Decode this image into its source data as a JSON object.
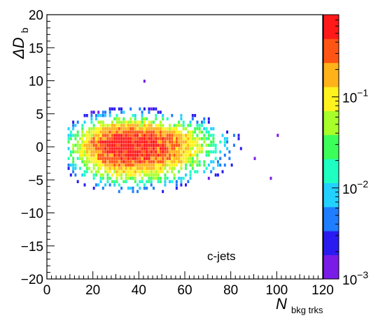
{
  "chart_data": {
    "type": "heatmap",
    "annotation": "c-jets",
    "xlabel": {
      "main": "N",
      "sub": "bkg trks"
    },
    "ylabel": {
      "main": "ΔD",
      "sub": "b"
    },
    "xlim": [
      0,
      120
    ],
    "ylim": [
      -20,
      20
    ],
    "x_ticks": [
      "0",
      "20",
      "40",
      "60",
      "80",
      "100",
      "120"
    ],
    "y_ticks": [
      "−20",
      "−15",
      "−10",
      "−5",
      "0",
      "5",
      "10",
      "15",
      "20"
    ],
    "z_scale": "log",
    "zlim": [
      0.001,
      0.8
    ],
    "z_ticks": [
      {
        "base": "10",
        "exp": "−3"
      },
      {
        "base": "10",
        "exp": "−2"
      },
      {
        "base": "10",
        "exp": "−1"
      }
    ],
    "bin_width": {
      "x": 1,
      "y": 0.5
    },
    "distribution": {
      "peak_x": 35,
      "peak_y": 0.3,
      "x_extent": [
        9,
        100
      ],
      "y_extent": [
        -8,
        10
      ],
      "outlier_points": [
        {
          "x": 42,
          "y": 9.7
        },
        {
          "x": 100,
          "y": 1.5
        },
        {
          "x": 97,
          "y": -5
        },
        {
          "x": 90,
          "y": -2
        }
      ]
    },
    "colormap": [
      "#7a1ce8",
      "#2a1cf0",
      "#1f7dff",
      "#23d1ff",
      "#1effc2",
      "#3dff5a",
      "#a8ff2a",
      "#fff21f",
      "#ffb21a",
      "#ff5514",
      "#ff1a1a"
    ],
    "grid": false
  }
}
